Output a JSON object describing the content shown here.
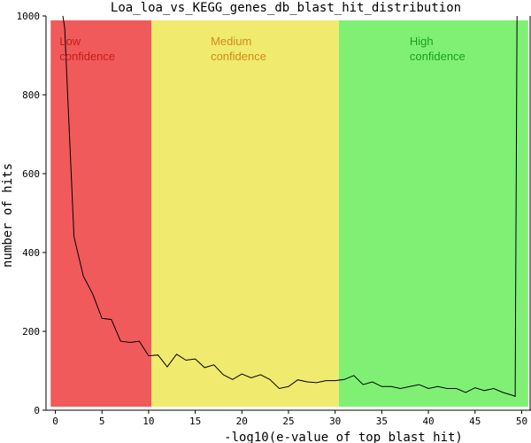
{
  "chart_data": {
    "type": "line",
    "title": "Loa_loa_vs_KEGG_genes_db_blast_hit_distribution",
    "xlabel": "-log10(e-value of top blast hit)",
    "ylabel": "number of hits",
    "xlim": [
      -1,
      51
    ],
    "ylim": [
      0,
      1000
    ],
    "x_ticks": [
      0,
      5,
      10,
      15,
      20,
      25,
      30,
      35,
      40,
      45,
      50
    ],
    "y_ticks": [
      0,
      200,
      400,
      600,
      800,
      1000
    ],
    "x_tick_labels": [
      "0",
      "5",
      "10",
      "15",
      "20",
      "25",
      "30",
      "35",
      "40",
      "45",
      "50"
    ],
    "y_tick_labels": [
      "0",
      "200",
      "400",
      "600",
      "800",
      "1000"
    ],
    "regions": [
      {
        "label_line1": "Low",
        "label_line2": "confidence",
        "x_start": -0.5,
        "x_end": 10.3,
        "fill": "#f05a5a",
        "text_color": "#cc1a1a"
      },
      {
        "label_line1": "Medium",
        "label_line2": "confidence",
        "x_start": 10.3,
        "x_end": 30.4,
        "fill": "#f0ea6e",
        "text_color": "#d08a1a"
      },
      {
        "label_line1": "High",
        "label_line2": "confidence",
        "x_start": 30.4,
        "x_end": 50.7,
        "fill": "#80f075",
        "text_color": "#1aa01a"
      }
    ],
    "series": [
      {
        "color": "#000000",
        "x": [
          0.8,
          1,
          2,
          3,
          4,
          5,
          6,
          7,
          8,
          9,
          10,
          11,
          12,
          13,
          14,
          15,
          16,
          17,
          18,
          19,
          20,
          21,
          22,
          23,
          24,
          25,
          26,
          27,
          28,
          29,
          30,
          31,
          32,
          33,
          34,
          35,
          36,
          37,
          38,
          39,
          40,
          41,
          42,
          43,
          44,
          45,
          46,
          47,
          48,
          49,
          49.3,
          49.5
        ],
        "y": [
          1000,
          970,
          440,
          340,
          295,
          233,
          230,
          175,
          172,
          175,
          138,
          140,
          110,
          142,
          127,
          130,
          108,
          115,
          90,
          78,
          92,
          82,
          90,
          78,
          55,
          60,
          77,
          72,
          70,
          75,
          75,
          78,
          88,
          65,
          72,
          60,
          60,
          55,
          60,
          65,
          55,
          60,
          55,
          55,
          45,
          57,
          50,
          55,
          45,
          38,
          35,
          1000
        ]
      }
    ]
  }
}
